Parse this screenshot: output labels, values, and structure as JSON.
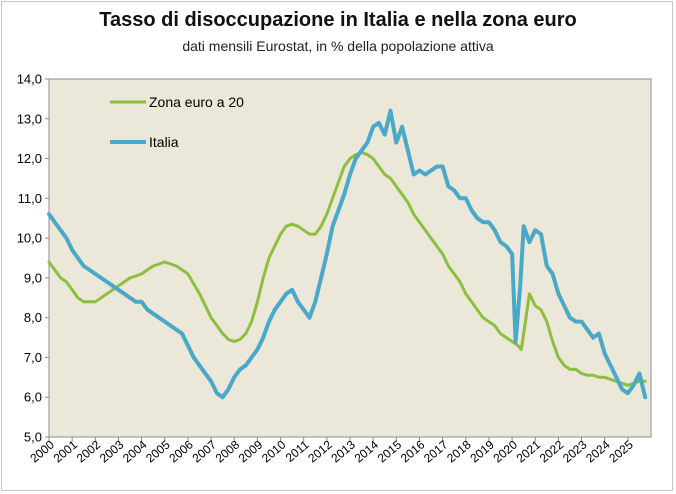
{
  "chart_data": {
    "type": "line",
    "title": "Tasso di disoccupazione in Italia e nella zona euro",
    "subtitle": "dati mensili Eurostat, in % della popolazione attiva",
    "xlabel": "",
    "ylabel": "",
    "ylim": [
      5.0,
      14.0
    ],
    "xlim": [
      2000.0,
      2026.0
    ],
    "y_ticks": [
      "5,0",
      "6,0",
      "7,0",
      "8,0",
      "9,0",
      "10,0",
      "11,0",
      "12,0",
      "13,0",
      "14,0"
    ],
    "x_ticks": [
      "2000",
      "2001",
      "2002",
      "2003",
      "2004",
      "2005",
      "2006",
      "2007",
      "2008",
      "2009",
      "2010",
      "2011",
      "2012",
      "2013",
      "2014",
      "2015",
      "2016",
      "2017",
      "2018",
      "2019",
      "2020",
      "2021",
      "2022",
      "2023",
      "2024",
      "2025"
    ],
    "grid": false,
    "legend_position": "top-left",
    "series": [
      {
        "name": "Zona euro a 20",
        "color": "#8dbf3f",
        "points": [
          [
            2000.0,
            9.4
          ],
          [
            2000.25,
            9.2
          ],
          [
            2000.5,
            9.0
          ],
          [
            2000.75,
            8.9
          ],
          [
            2001.0,
            8.7
          ],
          [
            2001.25,
            8.5
          ],
          [
            2001.5,
            8.4
          ],
          [
            2001.75,
            8.4
          ],
          [
            2002.0,
            8.4
          ],
          [
            2002.25,
            8.5
          ],
          [
            2002.5,
            8.6
          ],
          [
            2002.75,
            8.7
          ],
          [
            2003.0,
            8.8
          ],
          [
            2003.25,
            8.9
          ],
          [
            2003.5,
            9.0
          ],
          [
            2003.75,
            9.05
          ],
          [
            2004.0,
            9.1
          ],
          [
            2004.25,
            9.2
          ],
          [
            2004.5,
            9.3
          ],
          [
            2004.75,
            9.35
          ],
          [
            2005.0,
            9.4
          ],
          [
            2005.25,
            9.35
          ],
          [
            2005.5,
            9.3
          ],
          [
            2005.75,
            9.2
          ],
          [
            2006.0,
            9.1
          ],
          [
            2006.25,
            8.85
          ],
          [
            2006.5,
            8.6
          ],
          [
            2006.75,
            8.3
          ],
          [
            2007.0,
            8.0
          ],
          [
            2007.25,
            7.8
          ],
          [
            2007.5,
            7.6
          ],
          [
            2007.75,
            7.45
          ],
          [
            2008.0,
            7.4
          ],
          [
            2008.25,
            7.45
          ],
          [
            2008.5,
            7.6
          ],
          [
            2008.75,
            7.9
          ],
          [
            2009.0,
            8.4
          ],
          [
            2009.25,
            9.0
          ],
          [
            2009.5,
            9.5
          ],
          [
            2009.75,
            9.8
          ],
          [
            2010.0,
            10.1
          ],
          [
            2010.25,
            10.3
          ],
          [
            2010.5,
            10.35
          ],
          [
            2010.75,
            10.3
          ],
          [
            2011.0,
            10.2
          ],
          [
            2011.25,
            10.1
          ],
          [
            2011.5,
            10.1
          ],
          [
            2011.75,
            10.3
          ],
          [
            2012.0,
            10.6
          ],
          [
            2012.25,
            11.0
          ],
          [
            2012.5,
            11.4
          ],
          [
            2012.75,
            11.8
          ],
          [
            2013.0,
            12.0
          ],
          [
            2013.25,
            12.1
          ],
          [
            2013.5,
            12.15
          ],
          [
            2013.75,
            12.1
          ],
          [
            2014.0,
            12.0
          ],
          [
            2014.25,
            11.8
          ],
          [
            2014.5,
            11.6
          ],
          [
            2014.75,
            11.5
          ],
          [
            2015.0,
            11.3
          ],
          [
            2015.25,
            11.1
          ],
          [
            2015.5,
            10.9
          ],
          [
            2015.75,
            10.6
          ],
          [
            2016.0,
            10.4
          ],
          [
            2016.25,
            10.2
          ],
          [
            2016.5,
            10.0
          ],
          [
            2016.75,
            9.8
          ],
          [
            2017.0,
            9.6
          ],
          [
            2017.25,
            9.3
          ],
          [
            2017.5,
            9.1
          ],
          [
            2017.75,
            8.9
          ],
          [
            2018.0,
            8.6
          ],
          [
            2018.25,
            8.4
          ],
          [
            2018.5,
            8.2
          ],
          [
            2018.75,
            8.0
          ],
          [
            2019.0,
            7.9
          ],
          [
            2019.25,
            7.8
          ],
          [
            2019.5,
            7.6
          ],
          [
            2019.75,
            7.5
          ],
          [
            2020.0,
            7.4
          ],
          [
            2020.25,
            7.3
          ],
          [
            2020.4,
            7.2
          ],
          [
            2020.6,
            8.0
          ],
          [
            2020.75,
            8.6
          ],
          [
            2021.0,
            8.3
          ],
          [
            2021.25,
            8.2
          ],
          [
            2021.5,
            7.9
          ],
          [
            2021.75,
            7.4
          ],
          [
            2022.0,
            7.0
          ],
          [
            2022.25,
            6.8
          ],
          [
            2022.5,
            6.7
          ],
          [
            2022.75,
            6.7
          ],
          [
            2023.0,
            6.6
          ],
          [
            2023.25,
            6.55
          ],
          [
            2023.5,
            6.55
          ],
          [
            2023.75,
            6.5
          ],
          [
            2024.0,
            6.5
          ],
          [
            2024.25,
            6.45
          ],
          [
            2024.5,
            6.4
          ],
          [
            2024.75,
            6.35
          ],
          [
            2025.0,
            6.3
          ],
          [
            2025.25,
            6.35
          ],
          [
            2025.5,
            6.4
          ],
          [
            2025.75,
            6.4
          ]
        ]
      },
      {
        "name": "Italia",
        "color": "#4aa8c9",
        "points": [
          [
            2000.0,
            10.6
          ],
          [
            2000.25,
            10.4
          ],
          [
            2000.5,
            10.2
          ],
          [
            2000.75,
            10.0
          ],
          [
            2001.0,
            9.7
          ],
          [
            2001.25,
            9.5
          ],
          [
            2001.5,
            9.3
          ],
          [
            2001.75,
            9.2
          ],
          [
            2002.0,
            9.1
          ],
          [
            2002.25,
            9.0
          ],
          [
            2002.5,
            8.9
          ],
          [
            2002.75,
            8.8
          ],
          [
            2003.0,
            8.7
          ],
          [
            2003.25,
            8.6
          ],
          [
            2003.5,
            8.5
          ],
          [
            2003.75,
            8.4
          ],
          [
            2004.0,
            8.4
          ],
          [
            2004.25,
            8.2
          ],
          [
            2004.5,
            8.1
          ],
          [
            2004.75,
            8.0
          ],
          [
            2005.0,
            7.9
          ],
          [
            2005.25,
            7.8
          ],
          [
            2005.5,
            7.7
          ],
          [
            2005.75,
            7.6
          ],
          [
            2006.0,
            7.3
          ],
          [
            2006.25,
            7.0
          ],
          [
            2006.5,
            6.8
          ],
          [
            2006.75,
            6.6
          ],
          [
            2007.0,
            6.4
          ],
          [
            2007.25,
            6.1
          ],
          [
            2007.5,
            6.0
          ],
          [
            2007.75,
            6.2
          ],
          [
            2008.0,
            6.5
          ],
          [
            2008.25,
            6.7
          ],
          [
            2008.5,
            6.8
          ],
          [
            2008.75,
            7.0
          ],
          [
            2009.0,
            7.2
          ],
          [
            2009.25,
            7.5
          ],
          [
            2009.5,
            7.9
          ],
          [
            2009.75,
            8.2
          ],
          [
            2010.0,
            8.4
          ],
          [
            2010.25,
            8.6
          ],
          [
            2010.5,
            8.7
          ],
          [
            2010.75,
            8.4
          ],
          [
            2011.0,
            8.2
          ],
          [
            2011.25,
            8.0
          ],
          [
            2011.5,
            8.4
          ],
          [
            2011.75,
            9.0
          ],
          [
            2012.0,
            9.6
          ],
          [
            2012.25,
            10.3
          ],
          [
            2012.5,
            10.7
          ],
          [
            2012.75,
            11.1
          ],
          [
            2013.0,
            11.6
          ],
          [
            2013.25,
            12.0
          ],
          [
            2013.5,
            12.2
          ],
          [
            2013.75,
            12.4
          ],
          [
            2014.0,
            12.8
          ],
          [
            2014.25,
            12.9
          ],
          [
            2014.5,
            12.6
          ],
          [
            2014.75,
            13.2
          ],
          [
            2015.0,
            12.4
          ],
          [
            2015.25,
            12.8
          ],
          [
            2015.5,
            12.2
          ],
          [
            2015.75,
            11.6
          ],
          [
            2016.0,
            11.7
          ],
          [
            2016.25,
            11.6
          ],
          [
            2016.5,
            11.7
          ],
          [
            2016.75,
            11.8
          ],
          [
            2017.0,
            11.8
          ],
          [
            2017.25,
            11.3
          ],
          [
            2017.5,
            11.2
          ],
          [
            2017.75,
            11.0
          ],
          [
            2018.0,
            11.0
          ],
          [
            2018.25,
            10.7
          ],
          [
            2018.5,
            10.5
          ],
          [
            2018.75,
            10.4
          ],
          [
            2019.0,
            10.4
          ],
          [
            2019.25,
            10.2
          ],
          [
            2019.5,
            9.9
          ],
          [
            2019.75,
            9.8
          ],
          [
            2020.0,
            9.6
          ],
          [
            2020.15,
            7.4
          ],
          [
            2020.35,
            8.8
          ],
          [
            2020.5,
            10.3
          ],
          [
            2020.75,
            9.9
          ],
          [
            2021.0,
            10.2
          ],
          [
            2021.25,
            10.1
          ],
          [
            2021.5,
            9.3
          ],
          [
            2021.75,
            9.1
          ],
          [
            2022.0,
            8.6
          ],
          [
            2022.25,
            8.3
          ],
          [
            2022.5,
            8.0
          ],
          [
            2022.75,
            7.9
          ],
          [
            2023.0,
            7.9
          ],
          [
            2023.25,
            7.7
          ],
          [
            2023.5,
            7.5
          ],
          [
            2023.75,
            7.6
          ],
          [
            2024.0,
            7.1
          ],
          [
            2024.25,
            6.8
          ],
          [
            2024.5,
            6.5
          ],
          [
            2024.75,
            6.2
          ],
          [
            2025.0,
            6.1
          ],
          [
            2025.25,
            6.3
          ],
          [
            2025.5,
            6.6
          ],
          [
            2025.75,
            6.0
          ]
        ]
      }
    ]
  }
}
